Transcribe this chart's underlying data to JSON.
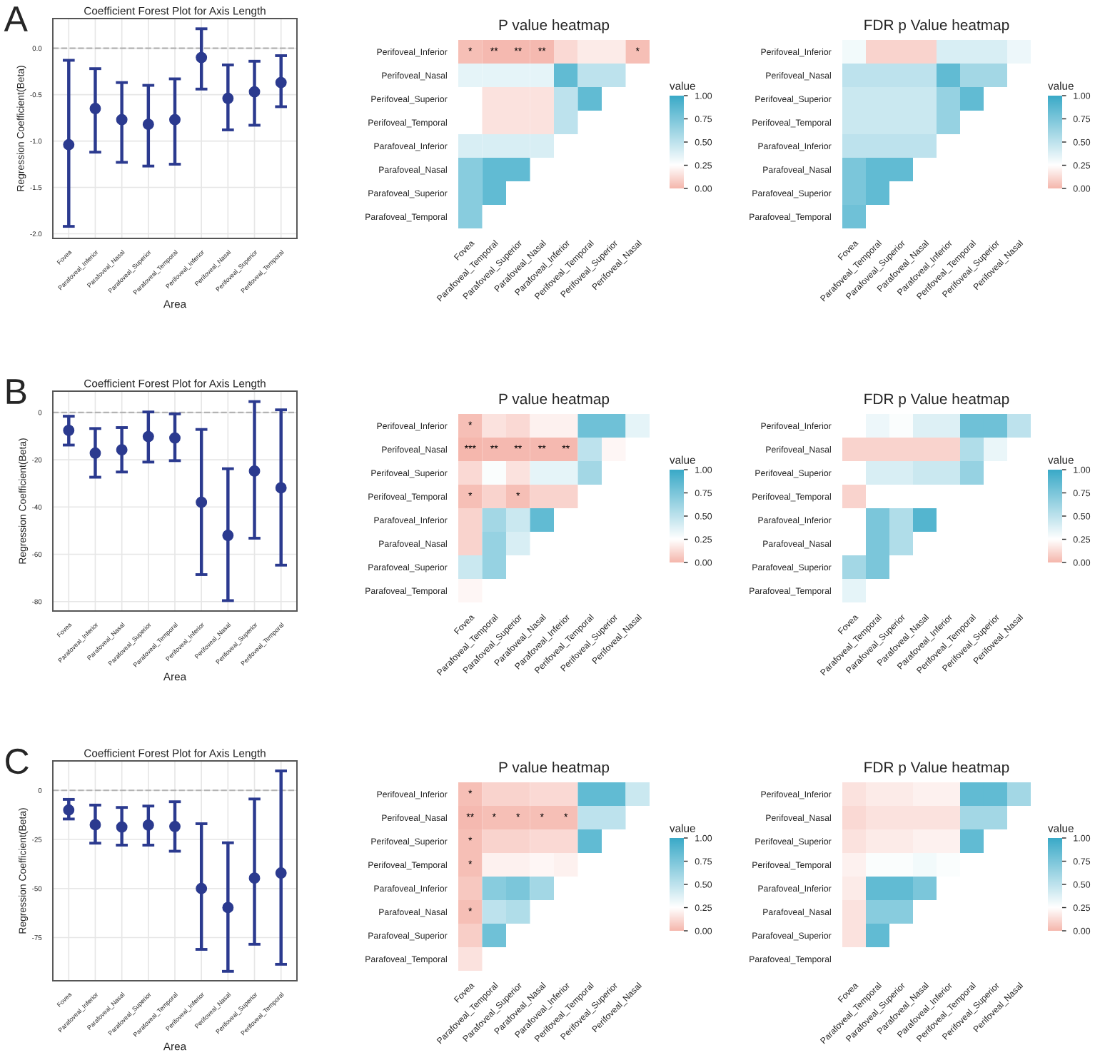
{
  "chart_data": [
    {
      "type": "scatter",
      "title": "Coefficient Forest Plot for Axis Length",
      "xlabel": "Area",
      "ylabel": "Regression Coefficient(Beta)",
      "annotations": [
        "A"
      ],
      "categories": [
        "Fovea",
        "Parafoveal_Inferior",
        "Parafoveal_Nasal",
        "Parafoveal_Superior",
        "Parafoveal_Temporal",
        "Perifoveal_Inferior",
        "Perifoveal_Nasal",
        "Perifoveal_Superior",
        "Perifoveal_Temporal"
      ],
      "values": [
        -1.04,
        -0.65,
        -0.77,
        -0.82,
        -0.77,
        -0.1,
        -0.54,
        -0.47,
        -0.37
      ],
      "errors": [
        [
          -1.92,
          -0.13
        ],
        [
          -1.12,
          -0.22
        ],
        [
          -1.23,
          -0.37
        ],
        [
          -1.27,
          -0.4
        ],
        [
          -1.25,
          -0.33
        ],
        [
          -0.44,
          0.21
        ],
        [
          -0.88,
          -0.18
        ],
        [
          -0.83,
          -0.14
        ],
        [
          -0.63,
          -0.08
        ]
      ],
      "color": "#2b3a8f",
      "marker": "circle",
      "grid": true,
      "ylim": [
        -2.05,
        0.32
      ],
      "yticks": [
        {
          "value": 0,
          "label": "0.0"
        },
        {
          "value": -0.5,
          "label": "-0.5"
        },
        {
          "value": -1,
          "label": "-1.0"
        },
        {
          "value": -1.5,
          "label": "-1.5"
        },
        {
          "value": -2,
          "label": "-2.0"
        }
      ],
      "ref_lines": [
        {
          "axis": "y",
          "value": 0,
          "color": "#b3b3b3",
          "line_style": "dashed"
        }
      ]
    },
    {
      "type": "heatmap",
      "title": "P value heatmap",
      "clabel": "value",
      "categories": [
        "Fovea",
        "Parafoveal_Temporal",
        "Parafoveal_Superior",
        "Parafoveal_Nasal",
        "Parafoveal_Inferior",
        "Perifoveal_Temporal",
        "Perifoveal_Superior",
        "Perifoveal_Nasal"
      ],
      "y_categories": [
        "Perifoveal_Inferior",
        "Perifoveal_Nasal",
        "Perifoveal_Superior",
        "Perifoveal_Temporal",
        "Parafoveal_Inferior",
        "Parafoveal_Nasal",
        "Parafoveal_Superior",
        "Parafoveal_Temporal"
      ],
      "cells": [
        [
          0.03,
          0.01,
          0.01,
          0.01,
          0.12,
          0.18,
          0.18,
          0.03
        ],
        [
          0.35,
          0.35,
          0.35,
          0.35,
          0.85,
          0.5,
          0.5,
          null
        ],
        [
          0.25,
          0.15,
          0.15,
          0.15,
          0.5,
          0.85,
          null,
          null
        ],
        [
          0.25,
          0.15,
          0.15,
          0.15,
          0.5,
          null,
          null,
          null
        ],
        [
          0.4,
          0.4,
          0.4,
          0.4,
          null,
          null,
          null,
          null
        ],
        [
          0.7,
          0.85,
          0.85,
          null,
          null,
          null,
          null,
          null
        ],
        [
          0.7,
          0.85,
          null,
          null,
          null,
          null,
          null,
          null
        ],
        [
          0.7,
          null,
          null,
          null,
          null,
          null,
          null,
          null
        ]
      ],
      "cell_labels": [
        [
          "*",
          "**",
          "**",
          "**",
          null,
          null,
          null,
          "*"
        ],
        [
          null,
          null,
          null,
          null,
          null,
          null,
          null,
          null
        ],
        [
          null,
          null,
          null,
          null,
          null,
          null,
          null,
          null
        ],
        [
          null,
          null,
          null,
          null,
          null,
          null,
          null,
          null
        ],
        [
          null,
          null,
          null,
          null,
          null,
          null,
          null,
          null
        ],
        [
          null,
          null,
          null,
          null,
          null,
          null,
          null,
          null
        ],
        [
          null,
          null,
          null,
          null,
          null,
          null,
          null,
          null
        ],
        [
          null,
          null,
          null,
          null,
          null,
          null,
          null,
          null
        ]
      ],
      "clim": [
        0,
        1
      ],
      "cticks": [
        {
          "value": 0,
          "label": "0.00"
        },
        {
          "value": 0.25,
          "label": "0.25"
        },
        {
          "value": 0.5,
          "label": "0.50"
        },
        {
          "value": 0.75,
          "label": "0.75"
        },
        {
          "value": 1,
          "label": "1.00"
        }
      ]
    },
    {
      "type": "heatmap",
      "title": "FDR p Value heatmap",
      "clabel": "value",
      "categories": [
        "Fovea",
        "Parafoveal_Temporal",
        "Parafoveal_Superior",
        "Parafoveal_Nasal",
        "Parafoveal_Inferior",
        "Perifoveal_Temporal",
        "Perifoveal_Superior",
        "Perifoveal_Nasal"
      ],
      "y_categories": [
        "Perifoveal_Inferior",
        "Perifoveal_Nasal",
        "Perifoveal_Superior",
        "Perifoveal_Temporal",
        "Parafoveal_Inferior",
        "Parafoveal_Nasal",
        "Parafoveal_Superior",
        "Parafoveal_Temporal"
      ],
      "cells": [
        [
          0.3,
          0.1,
          0.1,
          0.1,
          0.4,
          0.4,
          0.4,
          0.32
        ],
        [
          0.5,
          0.5,
          0.5,
          0.5,
          0.85,
          0.6,
          0.6,
          null
        ],
        [
          0.45,
          0.45,
          0.45,
          0.45,
          0.65,
          0.85,
          null,
          null
        ],
        [
          0.45,
          0.45,
          0.45,
          0.45,
          0.65,
          null,
          null,
          null
        ],
        [
          0.5,
          0.5,
          0.5,
          0.5,
          null,
          null,
          null,
          null
        ],
        [
          0.75,
          0.85,
          0.85,
          null,
          null,
          null,
          null,
          null
        ],
        [
          0.75,
          0.85,
          null,
          null,
          null,
          null,
          null,
          null
        ],
        [
          0.8,
          null,
          null,
          null,
          null,
          null,
          null,
          null
        ]
      ],
      "clim": [
        0,
        1
      ],
      "cticks": [
        {
          "value": 0,
          "label": "0.00"
        },
        {
          "value": 0.25,
          "label": "0.25"
        },
        {
          "value": 0.5,
          "label": "0.50"
        },
        {
          "value": 0.75,
          "label": "0.75"
        },
        {
          "value": 1,
          "label": "1.00"
        }
      ]
    },
    {
      "type": "scatter",
      "title": "Coefficient Forest Plot for Axis Length",
      "xlabel": "Area",
      "ylabel": "Regression Coefficient(Beta)",
      "annotations": [
        "B"
      ],
      "categories": [
        "Fovea",
        "Parafoveal_Inferior",
        "Parafoveal_Nasal",
        "Parafoveal_Superior",
        "Parafoveal_Temporal",
        "Perifoveal_Inferior",
        "Perifoveal_Nasal",
        "Perifoveal_Superior",
        "Perifoveal_Temporal"
      ],
      "values": [
        -7.6,
        -17.2,
        -15.8,
        -10.2,
        -10.8,
        -38,
        -52,
        -24.8,
        -31.9
      ],
      "errors": [
        [
          -13.8,
          -1.6
        ],
        [
          -27.4,
          -6.8
        ],
        [
          -25.2,
          -6.4
        ],
        [
          -21,
          0.2
        ],
        [
          -20.4,
          -0.6
        ],
        [
          -68.6,
          -7.2
        ],
        [
          -79.6,
          -23.8
        ],
        [
          -53.2,
          4.6
        ],
        [
          -64.6,
          1.1
        ]
      ],
      "color": "#2b3a8f",
      "marker": "circle",
      "grid": true,
      "ylim": [
        -84,
        9
      ],
      "yticks": [
        0,
        -20,
        -40,
        -60,
        -80
      ],
      "ref_lines": [
        {
          "axis": "y",
          "value": 0,
          "color": "#b3b3b3",
          "line_style": "dashed"
        }
      ]
    },
    {
      "type": "heatmap",
      "title": "P value heatmap",
      "clabel": "value",
      "categories": [
        "Fovea",
        "Parafoveal_Temporal",
        "Parafoveal_Superior",
        "Parafoveal_Nasal",
        "Parafoveal_Inferior",
        "Perifoveal_Temporal",
        "Perifoveal_Superior",
        "Perifoveal_Nasal"
      ],
      "y_categories": [
        "Perifoveal_Inferior",
        "Perifoveal_Nasal",
        "Perifoveal_Superior",
        "Perifoveal_Temporal",
        "Parafoveal_Inferior",
        "Parafoveal_Nasal",
        "Parafoveal_Superior",
        "Parafoveal_Temporal"
      ],
      "cells": [
        [
          0.03,
          0.15,
          0.12,
          0.2,
          0.2,
          0.8,
          0.8,
          0.35
        ],
        [
          0.0,
          0.01,
          0.01,
          0.01,
          0.01,
          0.5,
          0.22,
          null
        ],
        [
          0.12,
          0.27,
          0.15,
          0.35,
          0.35,
          0.6,
          null,
          null
        ],
        [
          0.03,
          0.1,
          0.03,
          0.1,
          0.1,
          null,
          null,
          null
        ],
        [
          0.1,
          0.6,
          0.45,
          0.85,
          null,
          null,
          null,
          null
        ],
        [
          0.1,
          0.65,
          0.4,
          null,
          null,
          null,
          null,
          null
        ],
        [
          0.45,
          0.65,
          null,
          null,
          null,
          null,
          null,
          null
        ],
        [
          0.22,
          null,
          null,
          null,
          null,
          null,
          null,
          null
        ]
      ],
      "cell_labels": [
        [
          "*",
          null,
          null,
          null,
          null,
          null,
          null,
          null
        ],
        [
          "***",
          "**",
          "**",
          "**",
          "**",
          null,
          null,
          null
        ],
        [
          null,
          null,
          null,
          null,
          null,
          null,
          null,
          null
        ],
        [
          "*",
          null,
          "*",
          null,
          null,
          null,
          null,
          null
        ],
        [
          null,
          null,
          null,
          null,
          null,
          null,
          null,
          null
        ],
        [
          null,
          null,
          null,
          null,
          null,
          null,
          null,
          null
        ],
        [
          null,
          null,
          null,
          null,
          null,
          null,
          null,
          null
        ],
        [
          null,
          null,
          null,
          null,
          null,
          null,
          null,
          null
        ]
      ],
      "clim": [
        0,
        1
      ],
      "cticks": [
        {
          "value": 0,
          "label": "0.00"
        },
        {
          "value": 0.25,
          "label": "0.25"
        },
        {
          "value": 0.5,
          "label": "0.50"
        },
        {
          "value": 0.75,
          "label": "0.75"
        },
        {
          "value": 1,
          "label": "1.00"
        }
      ]
    },
    {
      "type": "heatmap",
      "title": "FDR p Value heatmap",
      "clabel": "value",
      "categories": [
        "Fovea",
        "Parafoveal_Temporal",
        "Parafoveal_Superior",
        "Parafoveal_Nasal",
        "Parafoveal_Inferior",
        "Perifoveal_Temporal",
        "Perifoveal_Superior",
        "Perifoveal_Nasal"
      ],
      "y_categories": [
        "Perifoveal_Inferior",
        "Perifoveal_Nasal",
        "Perifoveal_Superior",
        "Perifoveal_Temporal",
        "Parafoveal_Inferior",
        "Parafoveal_Nasal",
        "Parafoveal_Superior",
        "Parafoveal_Temporal"
      ],
      "cells": [
        [
          0.25,
          0.32,
          0.27,
          0.38,
          0.38,
          0.8,
          0.8,
          0.5
        ],
        [
          0.1,
          0.1,
          0.1,
          0.1,
          0.1,
          0.55,
          0.33,
          null
        ],
        [
          0.25,
          0.4,
          0.4,
          0.45,
          0.45,
          0.65,
          null,
          null
        ],
        [
          0.1,
          0.25,
          0.25,
          0.25,
          0.25,
          null,
          null,
          null
        ],
        [
          0.25,
          0.75,
          0.55,
          0.9,
          null,
          null,
          null,
          null
        ],
        [
          0.25,
          0.75,
          0.55,
          null,
          null,
          null,
          null,
          null
        ],
        [
          0.6,
          0.75,
          null,
          null,
          null,
          null,
          null,
          null
        ],
        [
          0.35,
          null,
          null,
          null,
          null,
          null,
          null,
          null
        ]
      ],
      "clim": [
        0,
        1
      ],
      "cticks": [
        {
          "value": 0,
          "label": "0.00"
        },
        {
          "value": 0.25,
          "label": "0.25"
        },
        {
          "value": 0.5,
          "label": "0.50"
        },
        {
          "value": 0.75,
          "label": "0.75"
        },
        {
          "value": 1,
          "label": "1.00"
        }
      ]
    },
    {
      "type": "scatter",
      "title": "Coefficient Forest Plot for Axis Length",
      "xlabel": "Area",
      "ylabel": "Regression Coefficient(Beta)",
      "annotations": [
        "C"
      ],
      "categories": [
        "Fovea",
        "Parafoveal_Inferior",
        "Parafoveal_Nasal",
        "Parafoveal_Superior",
        "Parafoveal_Temporal",
        "Perifoveal_Inferior",
        "Perifoveal_Nasal",
        "Perifoveal_Superior",
        "Perifoveal_Temporal"
      ],
      "values": [
        -10,
        -17.5,
        -18.7,
        -17.7,
        -18.4,
        -50,
        -59.7,
        -44.7,
        -42.1
      ],
      "errors": [
        [
          -14.6,
          -4.6
        ],
        [
          -26.9,
          -7.5
        ],
        [
          -27.9,
          -8.7
        ],
        [
          -27.9,
          -8
        ],
        [
          -31,
          -5.8
        ],
        [
          -81,
          -17
        ],
        [
          -92.2,
          -26.7
        ],
        [
          -78.4,
          -4.4
        ],
        [
          -88.6,
          9.9
        ]
      ],
      "color": "#2b3a8f",
      "marker": "circle",
      "grid": true,
      "ylim": [
        -97,
        15
      ],
      "yticks": [
        0,
        -25,
        -50,
        -75
      ],
      "ref_lines": [
        {
          "axis": "y",
          "value": 0,
          "color": "#b3b3b3",
          "line_style": "dashed"
        }
      ]
    },
    {
      "type": "heatmap",
      "title": "P value heatmap",
      "clabel": "value",
      "categories": [
        "Fovea",
        "Parafoveal_Temporal",
        "Parafoveal_Superior",
        "Parafoveal_Nasal",
        "Parafoveal_Inferior",
        "Perifoveal_Temporal",
        "Perifoveal_Superior",
        "Perifoveal_Nasal"
      ],
      "y_categories": [
        "Perifoveal_Inferior",
        "Perifoveal_Nasal",
        "Perifoveal_Superior",
        "Perifoveal_Temporal",
        "Parafoveal_Inferior",
        "Parafoveal_Nasal",
        "Parafoveal_Superior",
        "Parafoveal_Temporal"
      ],
      "cells": [
        [
          0.03,
          0.1,
          0.1,
          0.12,
          0.12,
          0.85,
          0.85,
          0.45
        ],
        [
          0.01,
          0.03,
          0.03,
          0.03,
          0.03,
          0.5,
          0.5,
          null
        ],
        [
          0.03,
          0.1,
          0.1,
          0.12,
          0.12,
          0.85,
          null,
          null
        ],
        [
          0.03,
          0.2,
          0.2,
          0.22,
          0.2,
          null,
          null,
          null
        ],
        [
          0.06,
          0.7,
          0.75,
          0.6,
          null,
          null,
          null,
          null
        ],
        [
          0.03,
          0.5,
          0.55,
          null,
          null,
          null,
          null,
          null
        ],
        [
          0.08,
          0.8,
          null,
          null,
          null,
          null,
          null,
          null
        ],
        [
          0.15,
          null,
          null,
          null,
          null,
          null,
          null,
          null
        ]
      ],
      "cell_labels": [
        [
          "*",
          null,
          null,
          null,
          null,
          null,
          null,
          null
        ],
        [
          "**",
          "*",
          "*",
          "*",
          "*",
          null,
          null,
          null
        ],
        [
          "*",
          null,
          null,
          null,
          null,
          null,
          null,
          null
        ],
        [
          "*",
          null,
          null,
          null,
          null,
          null,
          null,
          null
        ],
        [
          null,
          null,
          null,
          null,
          null,
          null,
          null,
          null
        ],
        [
          "*",
          null,
          null,
          null,
          null,
          null,
          null,
          null
        ],
        [
          null,
          null,
          null,
          null,
          null,
          null,
          null,
          null
        ],
        [
          null,
          null,
          null,
          null,
          null,
          null,
          null,
          null
        ]
      ],
      "clim": [
        0,
        1
      ],
      "cticks": [
        {
          "value": 0,
          "label": "0.00"
        },
        {
          "value": 0.25,
          "label": "0.25"
        },
        {
          "value": 0.5,
          "label": "0.50"
        },
        {
          "value": 0.75,
          "label": "0.75"
        },
        {
          "value": 1,
          "label": "1.00"
        }
      ]
    },
    {
      "type": "heatmap",
      "title": "FDR p Value heatmap",
      "clabel": "value",
      "categories": [
        "Fovea",
        "Parafoveal_Temporal",
        "Parafoveal_Superior",
        "Parafoveal_Nasal",
        "Parafoveal_Inferior",
        "Perifoveal_Temporal",
        "Perifoveal_Superior",
        "Perifoveal_Nasal"
      ],
      "y_categories": [
        "Perifoveal_Inferior",
        "Perifoveal_Nasal",
        "Perifoveal_Superior",
        "Perifoveal_Temporal",
        "Parafoveal_Inferior",
        "Parafoveal_Nasal",
        "Parafoveal_Superior",
        "Parafoveal_Temporal"
      ],
      "cells": [
        [
          0.15,
          0.18,
          0.18,
          0.2,
          0.2,
          0.85,
          0.85,
          0.6
        ],
        [
          0.12,
          0.15,
          0.15,
          0.15,
          0.15,
          0.6,
          0.6,
          null
        ],
        [
          0.15,
          0.18,
          0.18,
          0.2,
          0.2,
          0.85,
          null,
          null
        ],
        [
          0.2,
          0.27,
          0.27,
          0.3,
          0.27,
          null,
          null,
          null
        ],
        [
          0.18,
          0.85,
          0.85,
          0.75,
          null,
          null,
          null,
          null
        ],
        [
          0.15,
          0.7,
          0.7,
          null,
          null,
          null,
          null,
          null
        ],
        [
          0.15,
          0.85,
          null,
          null,
          null,
          null,
          null,
          null
        ],
        [
          0.25,
          null,
          null,
          null,
          null,
          null,
          null,
          null
        ]
      ],
      "clim": [
        0,
        1
      ],
      "cticks": [
        {
          "value": 0,
          "label": "0.00"
        },
        {
          "value": 0.25,
          "label": "0.25"
        },
        {
          "value": 0.5,
          "label": "0.50"
        },
        {
          "value": 0.75,
          "label": "0.75"
        },
        {
          "value": 1,
          "label": "1.00"
        }
      ]
    }
  ]
}
